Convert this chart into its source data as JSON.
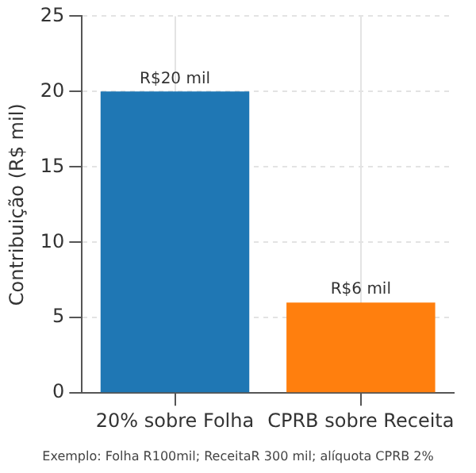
{
  "chart_data": {
    "type": "bar",
    "ylabel": "Contribuição (R$ mil)",
    "categories": [
      "20% sobre Folha",
      "CPRB sobre Receita"
    ],
    "values": [
      20,
      6
    ],
    "colors": [
      "#1f77b4",
      "#ff7f0e"
    ],
    "value_labels": [
      "R$20 mil",
      "R$6 mil"
    ],
    "ylim": [
      0,
      25
    ],
    "yticks": [
      0,
      5,
      10,
      15,
      20,
      25
    ],
    "grid": true,
    "annotations": [
      "Exemplo: Folha R100mil; ReceitaR 300 mil; alíquota CPRB 2%"
    ]
  }
}
